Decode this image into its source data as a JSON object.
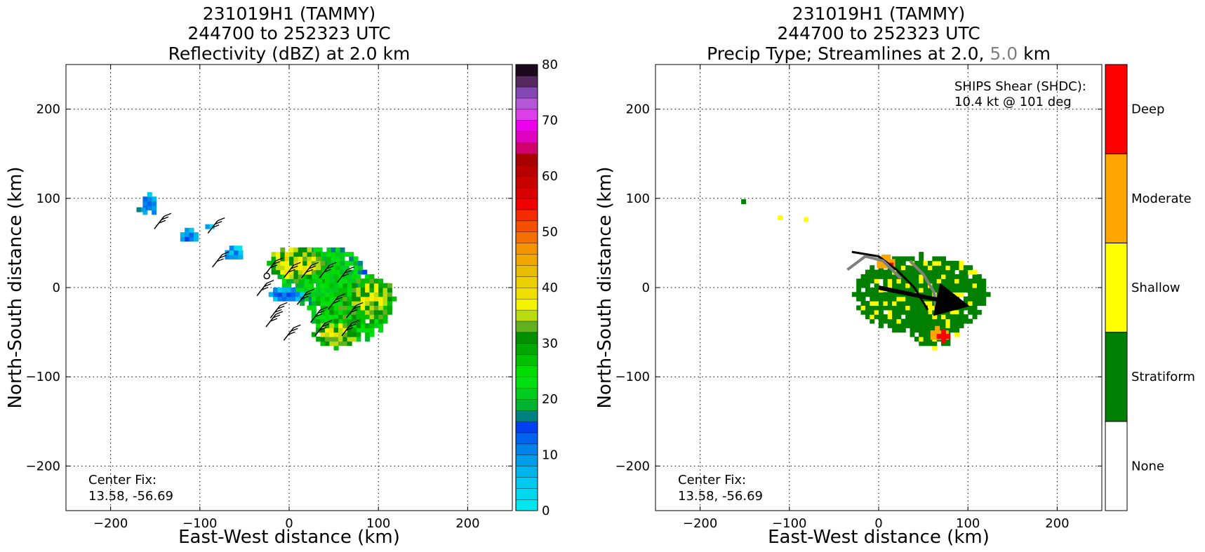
{
  "chart_data": [
    {
      "type": "heatmap",
      "title_lines": [
        "231019H1 (TAMMY)",
        "244700 to 252323 UTC",
        "Reflectivity (dBZ) at 2.0 km"
      ],
      "xlabel": "East-West distance (km)",
      "ylabel": "North-South distance (km)",
      "xlim": [
        -250,
        250
      ],
      "ylim": [
        -250,
        250
      ],
      "xticks": [
        -200,
        -100,
        0,
        100,
        200
      ],
      "yticks": [
        -200,
        -100,
        0,
        100,
        200
      ],
      "xtick_labels": [
        "−200",
        "−100",
        "0",
        "100",
        "200"
      ],
      "ytick_labels": [
        "−200",
        "−100",
        "0",
        "100",
        "200"
      ],
      "grid": true,
      "annotation": [
        "Center Fix:",
        "13.58, -56.69"
      ],
      "colorbar": {
        "label_values": [
          0,
          10,
          20,
          30,
          40,
          50,
          60,
          70,
          80
        ],
        "min": 0,
        "max": 80,
        "colors": [
          "#00e5ee",
          "#00d8f0",
          "#00c8ee",
          "#00b4ec",
          "#009ee8",
          "#0084ea",
          "#0064ee",
          "#0040f0",
          "#008080",
          "#00b430",
          "#00cc20",
          "#00e010",
          "#00dc00",
          "#00c000",
          "#00a800",
          "#009000",
          "#60b020",
          "#b8dc10",
          "#f4f400",
          "#f0e000",
          "#ecd000",
          "#e8bc00",
          "#f0a800",
          "#f49400",
          "#f47000",
          "#f45000",
          "#f42c00",
          "#f00000",
          "#d80000",
          "#c80000",
          "#b80000",
          "#a80000",
          "#d0006c",
          "#e000c0",
          "#ec00ec",
          "#dc40e8",
          "#b458d8",
          "#8448b4",
          "#552860",
          "#1a0a1c"
        ]
      },
      "blobs": [
        {
          "cx": 35,
          "cy": 10,
          "rx": 48,
          "ry": 35,
          "level": 25
        },
        {
          "cx": 65,
          "cy": -25,
          "rx": 45,
          "ry": 40,
          "level": 28
        },
        {
          "cx": 90,
          "cy": -15,
          "rx": 25,
          "ry": 25,
          "level": 35
        },
        {
          "cx": 5,
          "cy": 25,
          "rx": 30,
          "ry": 20,
          "level": 37
        },
        {
          "cx": 50,
          "cy": -55,
          "rx": 25,
          "ry": 15,
          "level": 36
        },
        {
          "cx": -5,
          "cy": -10,
          "rx": 18,
          "ry": 10,
          "level": 12
        },
        {
          "cx": -65,
          "cy": 35,
          "rx": 12,
          "ry": 8,
          "level": 10
        },
        {
          "cx": -115,
          "cy": 55,
          "rx": 12,
          "ry": 8,
          "level": 11
        },
        {
          "cx": -160,
          "cy": 90,
          "rx": 9,
          "ry": 13,
          "level": 12
        },
        {
          "cx": -170,
          "cy": 85,
          "rx": 6,
          "ry": 5,
          "level": 14
        },
        {
          "cx": -92,
          "cy": 65,
          "rx": 7,
          "ry": 4,
          "level": 8
        },
        {
          "cx": -60,
          "cy": 40,
          "rx": 3,
          "ry": 3,
          "level": 3
        }
      ]
    },
    {
      "type": "heatmap",
      "title_lines": [
        "231019H1 (TAMMY)",
        "244700 to 252323 UTC"
      ],
      "title_line3_parts": [
        "Precip Type; Streamlines at 2.0, ",
        "5.0",
        " km"
      ],
      "title_highlight_color": "#808080",
      "xlabel": "East-West distance (km)",
      "ylabel": "North-South distance (km)",
      "xlim": [
        -250,
        250
      ],
      "ylim": [
        -250,
        250
      ],
      "xticks": [
        -200,
        -100,
        0,
        100,
        200
      ],
      "yticks": [
        -200,
        -100,
        0,
        100,
        200
      ],
      "xtick_labels": [
        "−200",
        "−100",
        "0",
        "100",
        "200"
      ],
      "ytick_labels": [
        "−200",
        "−100",
        "0",
        "100",
        "200"
      ],
      "grid": true,
      "annotation": [
        "Center Fix:",
        "13.58, -56.69"
      ],
      "shear_text": [
        "SHIPS Shear (SHDC):",
        "10.4 kt @ 101 deg"
      ],
      "shear_arrow_color": "#000000",
      "colorbar": {
        "categories": [
          "None",
          "Stratiform",
          "Shallow",
          "Moderate",
          "Deep"
        ],
        "colors": [
          "#ffffff",
          "#008000",
          "#ffff00",
          "#ffa500",
          "#ff0000"
        ]
      },
      "blobs": [
        {
          "cx": 45,
          "cy": -10,
          "rx": 75,
          "ry": 45,
          "cat": 1
        },
        {
          "cx": 60,
          "cy": -45,
          "rx": 30,
          "ry": 25,
          "cat": 1
        },
        {
          "cx": -155,
          "cy": 95,
          "rx": 4,
          "ry": 6,
          "cat": 1
        },
        {
          "cx": 5,
          "cy": 25,
          "rx": 12,
          "ry": 8,
          "cat": 3
        },
        {
          "cx": 65,
          "cy": -55,
          "rx": 12,
          "ry": 8,
          "cat": 3
        },
        {
          "cx": 70,
          "cy": -57,
          "rx": 5,
          "ry": 5,
          "cat": 4
        },
        {
          "cx": 10,
          "cy": 22,
          "rx": 4,
          "ry": 4,
          "cat": 4
        },
        {
          "cx": -115,
          "cy": 74,
          "rx": 3,
          "ry": 3,
          "cat": 2
        },
        {
          "cx": -85,
          "cy": 72,
          "rx": 4,
          "ry": 3,
          "cat": 2
        }
      ]
    }
  ]
}
